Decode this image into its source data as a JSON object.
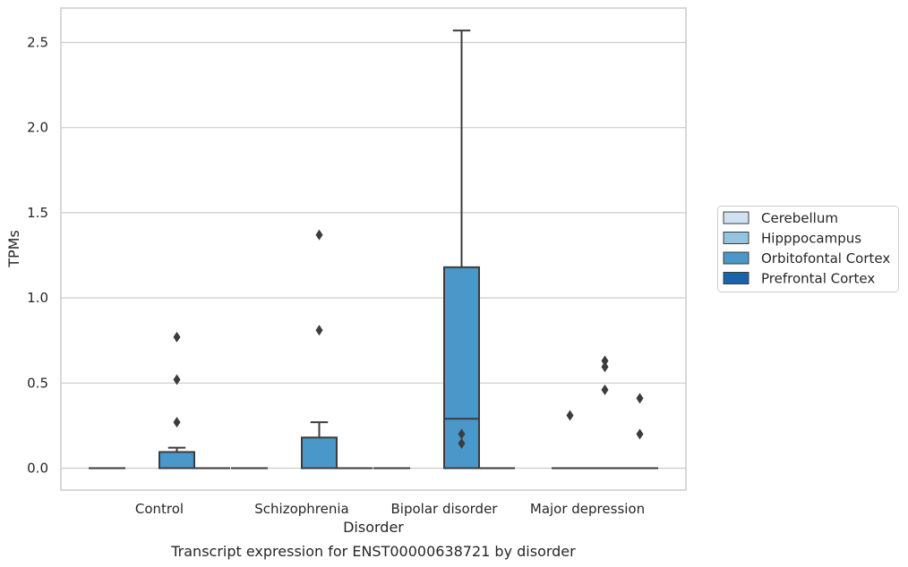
{
  "caption": "Transcript expression for ENST00000638721 by disorder",
  "chart_data": {
    "type": "box",
    "xlabel": "Disorder",
    "ylabel": "TPMs",
    "ylim": [
      -0.125,
      2.7
    ],
    "yticks": [
      0.0,
      0.5,
      1.0,
      1.5,
      2.0,
      2.5
    ],
    "ytick_labels": [
      "0.0",
      "0.5",
      "1.0",
      "1.5",
      "2.0",
      "2.5"
    ],
    "grid": "horizontal",
    "categories": [
      "Control",
      "Schizophrenia",
      "Bipolar disorder",
      "Major depression"
    ],
    "legend": {
      "placement": "right",
      "entries": [
        {
          "name": "Cerebellum",
          "color": "#d0e1f2"
        },
        {
          "name": "Hipppocampus",
          "color": "#94c4df"
        },
        {
          "name": "Orbitofontal Cortex",
          "color": "#4a98c9"
        },
        {
          "name": "Prefrontal Cortex",
          "color": "#1764ab"
        }
      ]
    },
    "boxes": [
      {
        "category": "Control",
        "series": "Cerebellum",
        "q1": 0,
        "median": 0,
        "q3": 0,
        "whisker_low": 0,
        "whisker_high": 0,
        "outliers": []
      },
      {
        "category": "Control",
        "series": "Orbitofontal Cortex",
        "q1": 0,
        "median": 0,
        "q3": 0.095,
        "whisker_low": 0,
        "whisker_high": 0.12,
        "outliers": [
          0.27,
          0.52,
          0.77
        ]
      },
      {
        "category": "Control",
        "series": "Prefrontal Cortex",
        "q1": 0,
        "median": 0,
        "q3": 0,
        "whisker_low": 0,
        "whisker_high": 0,
        "outliers": []
      },
      {
        "category": "Schizophrenia",
        "series": "Cerebellum",
        "q1": 0,
        "median": 0,
        "q3": 0,
        "whisker_low": 0,
        "whisker_high": 0,
        "outliers": []
      },
      {
        "category": "Schizophrenia",
        "series": "Orbitofontal Cortex",
        "q1": 0,
        "median": 0,
        "q3": 0.18,
        "whisker_low": 0,
        "whisker_high": 0.27,
        "outliers": [
          0.81,
          1.37
        ]
      },
      {
        "category": "Schizophrenia",
        "series": "Prefrontal Cortex",
        "q1": 0,
        "median": 0,
        "q3": 0,
        "whisker_low": 0,
        "whisker_high": 0,
        "outliers": []
      },
      {
        "category": "Bipolar disorder",
        "series": "Cerebellum",
        "q1": 0,
        "median": 0,
        "q3": 0,
        "whisker_low": 0,
        "whisker_high": 0,
        "outliers": []
      },
      {
        "category": "Bipolar disorder",
        "series": "Orbitofontal Cortex",
        "q1": 0,
        "median": 0.29,
        "q3": 1.18,
        "whisker_low": 0,
        "whisker_high": 2.57,
        "outliers": [
          0.2,
          0.145
        ]
      },
      {
        "category": "Bipolar disorder",
        "series": "Prefrontal Cortex",
        "q1": 0,
        "median": 0,
        "q3": 0,
        "whisker_low": 0,
        "whisker_high": 0,
        "outliers": []
      },
      {
        "category": "Major depression",
        "series": "Hipppocampus",
        "q1": 0,
        "median": 0,
        "q3": 0,
        "whisker_low": 0,
        "whisker_high": 0,
        "outliers": [
          0.31
        ]
      },
      {
        "category": "Major depression",
        "series": "Orbitofontal Cortex",
        "q1": 0,
        "median": 0,
        "q3": 0,
        "whisker_low": 0,
        "whisker_high": 0,
        "outliers": [
          0.46,
          0.595,
          0.63
        ]
      },
      {
        "category": "Major depression",
        "series": "Prefrontal Cortex",
        "q1": 0,
        "median": 0,
        "q3": 0,
        "whisker_low": 0,
        "whisker_high": 0,
        "outliers": [
          0.2,
          0.41
        ]
      }
    ]
  }
}
